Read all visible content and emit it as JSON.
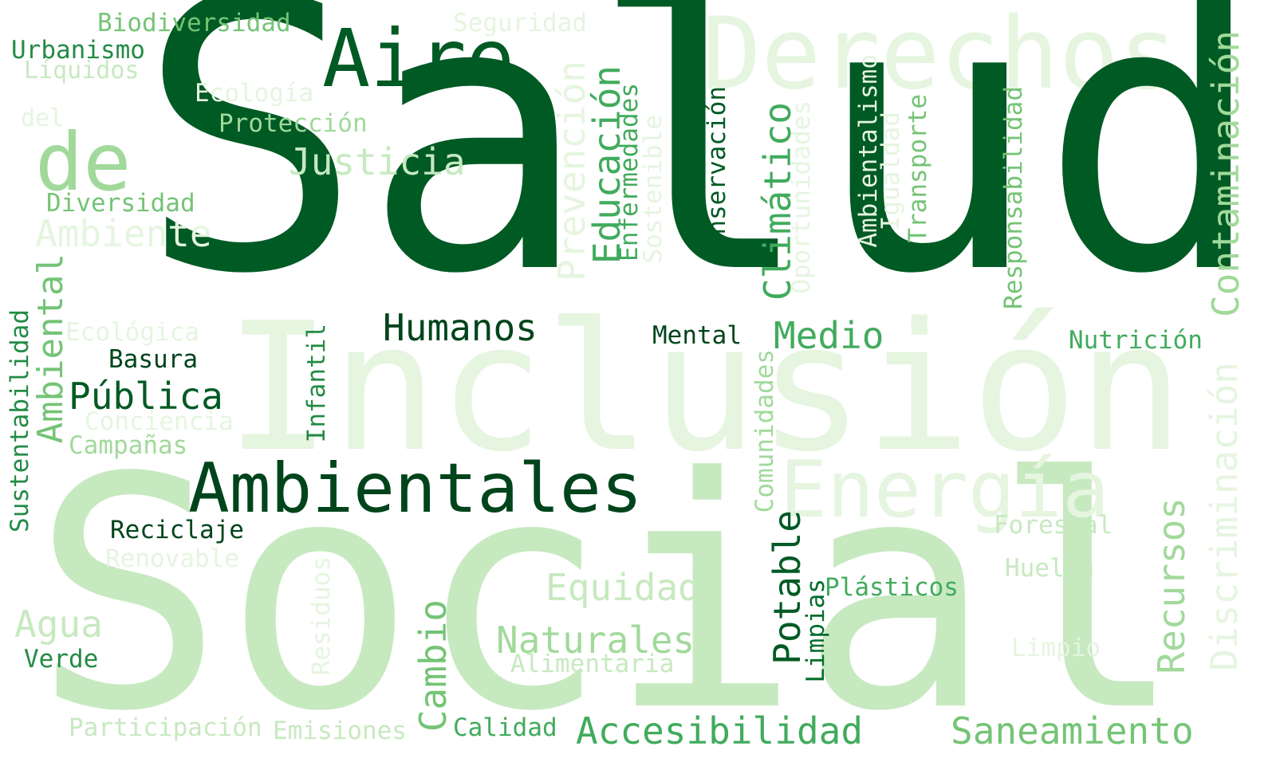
{
  "palette": {
    "darkest": "#00441b",
    "dark": "#006d2c",
    "mid_dark": "#238b45",
    "mid": "#41ab5d",
    "mid_light": "#74c476",
    "light": "#a1d99b",
    "lighter": "#c7e9c0",
    "lightest": "#e5f5e0"
  },
  "words": {
    "salud": "Salud",
    "inclusion": "Inclusión",
    "social": "Social",
    "derechos": "Derechos",
    "aire": "Aire",
    "ambientales": "Ambientales",
    "de": "de",
    "justicia": "Justicia",
    "ambiente": "Ambiente",
    "diversidad": "Diversidad",
    "proteccion": "Protección",
    "ecologia": "Ecología",
    "liquidos": "Líquidos",
    "urbanismo": "Urbanismo",
    "biodiversidad": "Biodiversidad",
    "seguridad": "Seguridad",
    "del": "del",
    "ambiental": "Ambiental",
    "sustentabilidad": "Sustentabilidad",
    "ecologica": "Ecológica",
    "basura": "Basura",
    "publica": "Pública",
    "conciencia": "Conciencia",
    "campanas": "Campañas",
    "reciclaje": "Reciclaje",
    "renovable": "Renovable",
    "agua": "Agua",
    "verde": "Verde",
    "participacion": "Participación",
    "emisiones": "Emisiones",
    "calidad": "Calidad",
    "accesibilidad": "Accesibilidad",
    "saneamiento": "Saneamiento",
    "humanos": "Humanos",
    "infantil": "Infantil",
    "residuos": "Residuos",
    "cambio": "Cambio",
    "equidad": "Equidad",
    "naturales": "Naturales",
    "alimentaria": "Alimentaria",
    "prevencion": "Prevención",
    "educacion": "Educación",
    "enfermedades": "Enfermedades",
    "sostenible": "Sostenible",
    "conservacion": "Conservación",
    "mental": "Mental",
    "climatico": "Climático",
    "oportunidades": "Oportunidades",
    "ambientalismo": "Ambientalismo",
    "igualdad": "Igualdad",
    "transporte": "Transporte",
    "medio": "Medio",
    "comunidades": "Comunidades",
    "energia": "Energía",
    "potable": "Potable",
    "limpias": "Limpias",
    "plasticos": "Plásticos",
    "responsabilidad": "Responsabilidad",
    "contaminacion": "Contaminación",
    "nutricion": "Nutrición",
    "discriminacion": "Discriminación",
    "forestal": "Forestal",
    "huella": "Huella",
    "recursos": "Recursos",
    "limpio": "Limpio"
  }
}
